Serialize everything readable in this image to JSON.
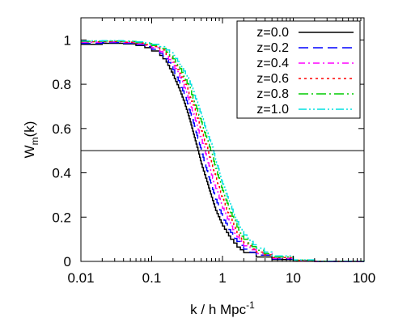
{
  "chart_data": {
    "type": "line",
    "title": "",
    "xlabel": {
      "main": "k / h Mpc",
      "sup": "-1"
    },
    "ylabel": {
      "main": "W",
      "sub": "m",
      "tail": "(k)"
    },
    "xscale": "log",
    "xlim": [
      0.01,
      100
    ],
    "ylim": [
      0,
      1.1
    ],
    "x_ticks": [
      0.01,
      0.1,
      1,
      10,
      100
    ],
    "x_tick_labels": [
      "0.01",
      "0.1",
      "1",
      "10",
      "100"
    ],
    "y_ticks": [
      0,
      0.2,
      0.4,
      0.6,
      0.8,
      1
    ],
    "y_tick_labels": [
      "0",
      "0.2",
      "0.4",
      "0.6",
      "0.8",
      "1"
    ],
    "grid": false,
    "legend_position": "top-right",
    "reference_line": {
      "y": 0.5,
      "color": "#000000"
    },
    "series": [
      {
        "name": "z=0.0",
        "color": "#000000",
        "dash": "solid",
        "points": [
          [
            0.01,
            0.98
          ],
          [
            0.02,
            0.985
          ],
          [
            0.04,
            0.982
          ],
          [
            0.06,
            0.975
          ],
          [
            0.08,
            0.965
          ],
          [
            0.1,
            0.95
          ],
          [
            0.13,
            0.93
          ],
          [
            0.16,
            0.9
          ],
          [
            0.2,
            0.84
          ],
          [
            0.25,
            0.77
          ],
          [
            0.3,
            0.7
          ],
          [
            0.35,
            0.63
          ],
          [
            0.4,
            0.56
          ],
          [
            0.45,
            0.5
          ],
          [
            0.5,
            0.44
          ],
          [
            0.6,
            0.36
          ],
          [
            0.7,
            0.29
          ],
          [
            0.8,
            0.23
          ],
          [
            1,
            0.16
          ],
          [
            1.3,
            0.1
          ],
          [
            1.6,
            0.065
          ],
          [
            2,
            0.04
          ],
          [
            3,
            0.02
          ],
          [
            5,
            0.008
          ],
          [
            10,
            0.002
          ],
          [
            20,
            0.0
          ],
          [
            100,
            0.0
          ]
        ]
      },
      {
        "name": "z=0.2",
        "color": "#0000ff",
        "dash": "long-dash",
        "points": [
          [
            0.01,
            0.985
          ],
          [
            0.02,
            0.988
          ],
          [
            0.04,
            0.985
          ],
          [
            0.06,
            0.978
          ],
          [
            0.08,
            0.97
          ],
          [
            0.1,
            0.958
          ],
          [
            0.13,
            0.94
          ],
          [
            0.16,
            0.915
          ],
          [
            0.2,
            0.865
          ],
          [
            0.25,
            0.8
          ],
          [
            0.3,
            0.74
          ],
          [
            0.35,
            0.67
          ],
          [
            0.4,
            0.61
          ],
          [
            0.5,
            0.5
          ],
          [
            0.6,
            0.41
          ],
          [
            0.7,
            0.34
          ],
          [
            0.8,
            0.28
          ],
          [
            1,
            0.2
          ],
          [
            1.3,
            0.13
          ],
          [
            1.6,
            0.09
          ],
          [
            2,
            0.055
          ],
          [
            3,
            0.028
          ],
          [
            5,
            0.011
          ],
          [
            10,
            0.003
          ],
          [
            20,
            0.0
          ],
          [
            100,
            0.0
          ]
        ]
      },
      {
        "name": "z=0.4",
        "color": "#ff00ff",
        "dash": "dash-dot",
        "points": [
          [
            0.01,
            0.99
          ],
          [
            0.02,
            0.991
          ],
          [
            0.04,
            0.988
          ],
          [
            0.06,
            0.982
          ],
          [
            0.08,
            0.975
          ],
          [
            0.1,
            0.965
          ],
          [
            0.13,
            0.948
          ],
          [
            0.16,
            0.925
          ],
          [
            0.2,
            0.885
          ],
          [
            0.25,
            0.83
          ],
          [
            0.3,
            0.77
          ],
          [
            0.35,
            0.71
          ],
          [
            0.4,
            0.65
          ],
          [
            0.5,
            0.55
          ],
          [
            0.56,
            0.5
          ],
          [
            0.7,
            0.39
          ],
          [
            0.8,
            0.33
          ],
          [
            1,
            0.24
          ],
          [
            1.3,
            0.16
          ],
          [
            1.6,
            0.11
          ],
          [
            2,
            0.07
          ],
          [
            3,
            0.035
          ],
          [
            5,
            0.014
          ],
          [
            10,
            0.004
          ],
          [
            20,
            0.0
          ],
          [
            100,
            0.0
          ]
        ]
      },
      {
        "name": "z=0.6",
        "color": "#ff0000",
        "dash": "dotted",
        "points": [
          [
            0.01,
            0.992
          ],
          [
            0.02,
            0.993
          ],
          [
            0.04,
            0.99
          ],
          [
            0.06,
            0.986
          ],
          [
            0.08,
            0.979
          ],
          [
            0.1,
            0.97
          ],
          [
            0.13,
            0.955
          ],
          [
            0.16,
            0.935
          ],
          [
            0.2,
            0.9
          ],
          [
            0.25,
            0.85
          ],
          [
            0.3,
            0.8
          ],
          [
            0.35,
            0.74
          ],
          [
            0.4,
            0.69
          ],
          [
            0.5,
            0.59
          ],
          [
            0.62,
            0.5
          ],
          [
            0.7,
            0.44
          ],
          [
            0.8,
            0.38
          ],
          [
            1,
            0.28
          ],
          [
            1.3,
            0.19
          ],
          [
            1.6,
            0.13
          ],
          [
            2,
            0.085
          ],
          [
            3,
            0.042
          ],
          [
            5,
            0.017
          ],
          [
            10,
            0.005
          ],
          [
            20,
            0.001
          ],
          [
            100,
            0.0
          ]
        ]
      },
      {
        "name": "z=0.8",
        "color": "#00cc00",
        "dash": "dash-dot-long",
        "points": [
          [
            0.01,
            0.994
          ],
          [
            0.02,
            0.995
          ],
          [
            0.04,
            0.993
          ],
          [
            0.06,
            0.988
          ],
          [
            0.08,
            0.983
          ],
          [
            0.1,
            0.975
          ],
          [
            0.13,
            0.962
          ],
          [
            0.16,
            0.945
          ],
          [
            0.2,
            0.915
          ],
          [
            0.25,
            0.87
          ],
          [
            0.3,
            0.82
          ],
          [
            0.35,
            0.77
          ],
          [
            0.4,
            0.72
          ],
          [
            0.5,
            0.63
          ],
          [
            0.6,
            0.55
          ],
          [
            0.68,
            0.5
          ],
          [
            0.8,
            0.42
          ],
          [
            1,
            0.32
          ],
          [
            1.3,
            0.22
          ],
          [
            1.6,
            0.155
          ],
          [
            2,
            0.1
          ],
          [
            3,
            0.05
          ],
          [
            5,
            0.02
          ],
          [
            10,
            0.006
          ],
          [
            20,
            0.001
          ],
          [
            100,
            0.0
          ]
        ]
      },
      {
        "name": "z=1.0",
        "color": "#00e0e0",
        "dash": "dash-dot-dot",
        "points": [
          [
            0.01,
            0.996
          ],
          [
            0.02,
            0.997
          ],
          [
            0.04,
            0.995
          ],
          [
            0.06,
            0.991
          ],
          [
            0.08,
            0.987
          ],
          [
            0.1,
            0.98
          ],
          [
            0.13,
            0.97
          ],
          [
            0.16,
            0.955
          ],
          [
            0.2,
            0.93
          ],
          [
            0.25,
            0.89
          ],
          [
            0.3,
            0.845
          ],
          [
            0.35,
            0.8
          ],
          [
            0.4,
            0.75
          ],
          [
            0.5,
            0.66
          ],
          [
            0.6,
            0.58
          ],
          [
            0.74,
            0.5
          ],
          [
            0.8,
            0.46
          ],
          [
            1,
            0.35
          ],
          [
            1.3,
            0.25
          ],
          [
            1.6,
            0.18
          ],
          [
            2,
            0.12
          ],
          [
            3,
            0.06
          ],
          [
            5,
            0.025
          ],
          [
            10,
            0.007
          ],
          [
            20,
            0.001
          ],
          [
            100,
            0.0
          ]
        ]
      }
    ]
  }
}
